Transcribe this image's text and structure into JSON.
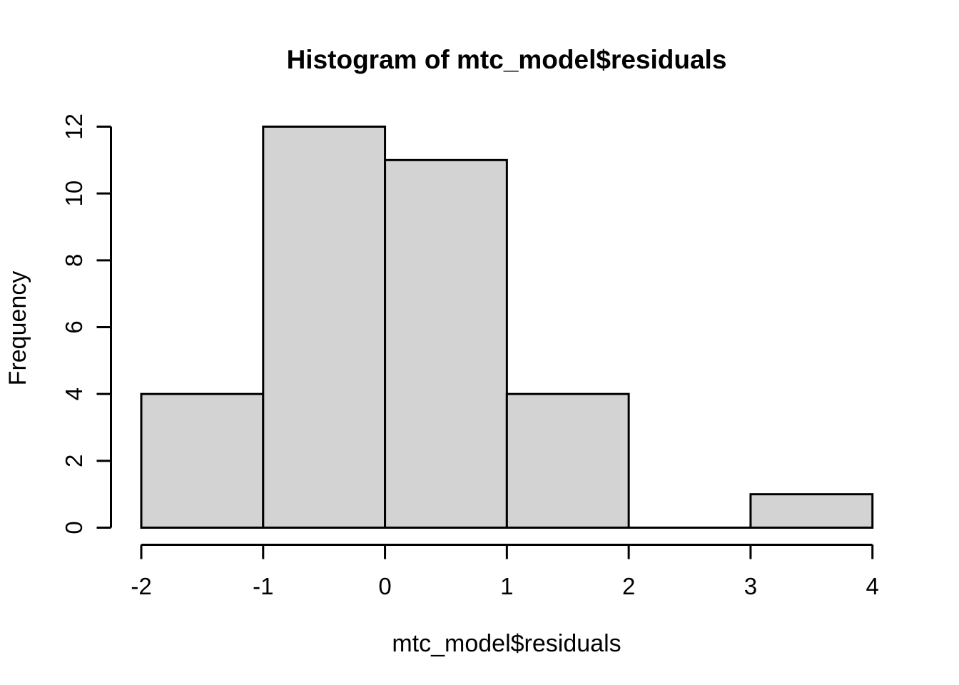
{
  "chart_data": {
    "type": "bar",
    "subtype": "histogram",
    "title": "Histogram of mtc_model$residuals",
    "xlabel": "mtc_model$residuals",
    "ylabel": "Frequency",
    "bin_edges": [
      -2,
      -1,
      0,
      1,
      2,
      3,
      4
    ],
    "counts": [
      4,
      12,
      11,
      4,
      0,
      1
    ],
    "x_ticks": [
      "-2",
      "-1",
      "0",
      "1",
      "2",
      "3",
      "4"
    ],
    "x_tick_values": [
      -2,
      -1,
      0,
      1,
      2,
      3,
      4
    ],
    "y_ticks": [
      "0",
      "2",
      "4",
      "6",
      "8",
      "10",
      "12"
    ],
    "y_tick_values": [
      0,
      2,
      4,
      6,
      8,
      10,
      12
    ],
    "xlim": [
      -2,
      4
    ],
    "ylim": [
      0,
      12
    ],
    "grid": "off",
    "legend": "none",
    "bar_fill_color": "#d3d3d3",
    "bar_border_color": "#000000",
    "axis_color": "#000000",
    "text_color": "#000000",
    "background_color": "#ffffff"
  }
}
